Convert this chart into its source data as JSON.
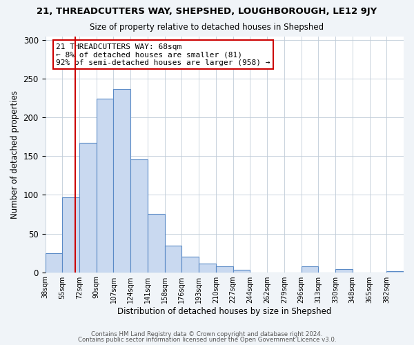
{
  "title": "21, THREADCUTTERS WAY, SHEPSHED, LOUGHBOROUGH, LE12 9JY",
  "subtitle": "Size of property relative to detached houses in Shepshed",
  "xlabel": "Distribution of detached houses by size in Shepshed",
  "ylabel": "Number of detached properties",
  "bin_labels": [
    "38sqm",
    "55sqm",
    "72sqm",
    "90sqm",
    "107sqm",
    "124sqm",
    "141sqm",
    "158sqm",
    "176sqm",
    "193sqm",
    "210sqm",
    "227sqm",
    "244sqm",
    "262sqm",
    "279sqm",
    "296sqm",
    "313sqm",
    "330sqm",
    "348sqm",
    "365sqm",
    "382sqm"
  ],
  "bar_heights": [
    25,
    97,
    167,
    224,
    237,
    146,
    75,
    34,
    20,
    11,
    8,
    3,
    0,
    0,
    0,
    8,
    0,
    4,
    0,
    0,
    1
  ],
  "bar_color": "#c9d9f0",
  "bar_edge_color": "#5a8ac6",
  "vline_color": "#cc0000",
  "annotation_text": "21 THREADCUTTERS WAY: 68sqm\n← 8% of detached houses are smaller (81)\n92% of semi-detached houses are larger (958) →",
  "annotation_box_color": "#cc0000",
  "ylim": [
    0,
    305
  ],
  "yticks": [
    0,
    50,
    100,
    150,
    200,
    250,
    300
  ],
  "footer_line1": "Contains HM Land Registry data © Crown copyright and database right 2024.",
  "footer_line2": "Contains public sector information licensed under the Open Government Licence v3.0.",
  "background_color": "#f0f4f8",
  "plot_background_color": "#ffffff",
  "vline_pos": 1.765
}
